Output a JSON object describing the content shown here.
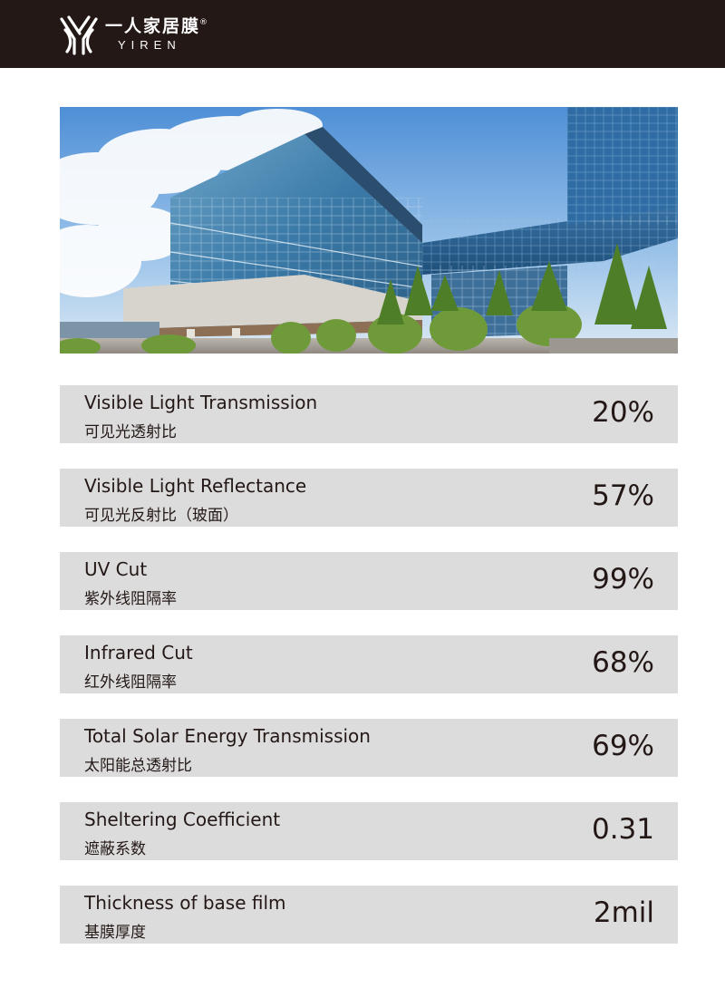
{
  "brand": {
    "name_cn": "一人家居膜",
    "registered": "®",
    "name_en": "YIREN",
    "logo_icon": "yiren-logo-mark"
  },
  "hero": {
    "image_icon": "glass-building-photo"
  },
  "specs": [
    {
      "label_en": "Visible Light Transmission",
      "label_cn": "可见光透射比",
      "value": "20%"
    },
    {
      "label_en": "Visible Light Reflectance",
      "label_cn": "可见光反射比（玻面）",
      "value": "57%"
    },
    {
      "label_en": "UV Cut",
      "label_cn": "紫外线阻隔率",
      "value": "99%"
    },
    {
      "label_en": "Infrared Cut",
      "label_cn": "红外线阻隔率",
      "value": "68%"
    },
    {
      "label_en": "Total Solar Energy Transmission",
      "label_cn": "太阳能总透射比",
      "value": "69%"
    },
    {
      "label_en": "Sheltering Coefficient",
      "label_cn": "遮蔽系数",
      "value": "0.31"
    },
    {
      "label_en": "Thickness of base film",
      "label_cn": "基膜厚度",
      "value": "2mil"
    }
  ],
  "colors": {
    "header_bg": "#231815",
    "row_bg": "#dcdcdd",
    "text": "#231815"
  }
}
